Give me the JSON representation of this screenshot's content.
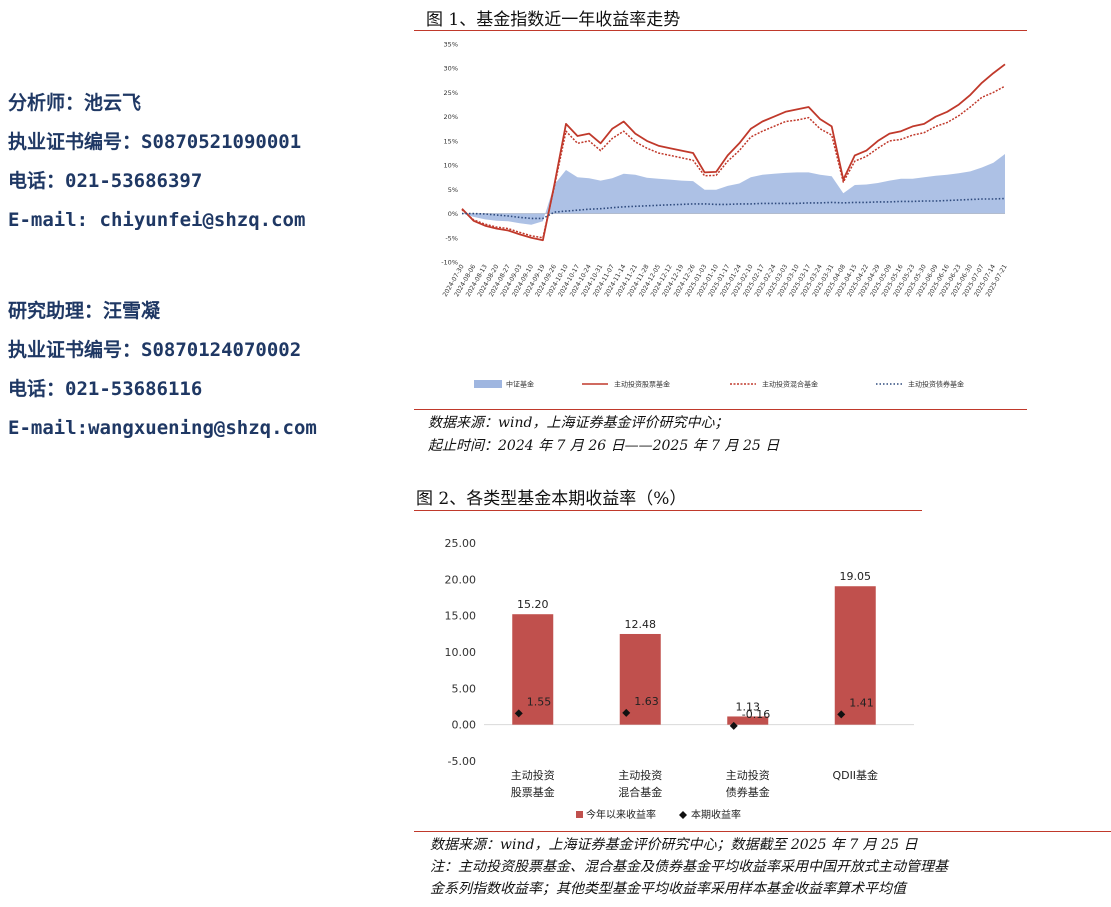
{
  "sidebar": {
    "analyst": "分析师：池云飞",
    "analyst_cert": "执业证书编号：S0870521090001",
    "analyst_phone": "电话：021-53686397",
    "analyst_email": "E-mail: chiyunfei@shzq.com",
    "assistant": "研究助理：汪雪凝",
    "assistant_cert": "执业证书编号：S0870124070002",
    "assistant_phone": "电话：021-53686116",
    "assistant_email": "E-mail:wangxuening@shzq.com"
  },
  "figure1": {
    "title": "图 1、基金指数近一年收益率走势",
    "source_line1": "数据来源：wind，上海证券基金评价研究中心；",
    "source_line2": "起止时间：2024 年 7 月 26 日——2025 年 7 月 25 日"
  },
  "figure2": {
    "title": "图 2、各类型基金本期收益率（%）",
    "source_line1": "数据来源：wind，上海证券基金评价研究中心；数据截至 2025 年 7 月 25 日",
    "source_line2": "注：主动投资股票基金、混合基金及债券基金平均收益率采用中国开放式主动管理基",
    "source_line3": "金系列指数收益率；其他类型基金平均收益率采用样本基金收益率算术平均值"
  },
  "colors": {
    "red": "#c0504d",
    "line_red": "#c0392b",
    "navy": "#2e4a7d",
    "area": "#9fb6e0",
    "text_blue": "#1f3864"
  },
  "chart_data": [
    {
      "type": "line",
      "ylim": [
        -10,
        35
      ],
      "yticks": [
        "-10%",
        "-5%",
        "0%",
        "5%",
        "10%",
        "15%",
        "20%",
        "25%",
        "30%",
        "35%"
      ],
      "x_labels": [
        "2024-07-30",
        "2024-08-06",
        "2024-08-13",
        "2024-08-20",
        "2024-08-27",
        "2024-09-03",
        "2024-09-10",
        "2024-09-19",
        "2024-09-26",
        "2024-10-10",
        "2024-10-17",
        "2024-10-24",
        "2024-10-31",
        "2024-11-07",
        "2024-11-14",
        "2024-11-21",
        "2024-11-28",
        "2024-12-05",
        "2024-12-12",
        "2024-12-19",
        "2024-12-26",
        "2025-01-03",
        "2025-01-10",
        "2025-01-17",
        "2025-01-24",
        "2025-02-10",
        "2025-02-17",
        "2025-02-24",
        "2025-03-03",
        "2025-03-10",
        "2025-03-17",
        "2025-03-24",
        "2025-03-31",
        "2025-04-08",
        "2025-04-15",
        "2025-04-22",
        "2025-04-29",
        "2025-05-09",
        "2025-05-16",
        "2025-05-23",
        "2025-05-30",
        "2025-06-09",
        "2025-06-16",
        "2025-06-23",
        "2025-06-30",
        "2025-07-07",
        "2025-07-14",
        "2025-07-21"
      ],
      "series": [
        {
          "name": "中证基金",
          "style": "area",
          "values": [
            0.1,
            -0.7,
            -1.2,
            -1.5,
            -1.6,
            -2.0,
            -2.3,
            -1.6,
            6.0,
            9.0,
            7.5,
            7.3,
            6.8,
            7.3,
            8.2,
            8.0,
            7.4,
            7.2,
            7.0,
            6.8,
            6.7,
            4.9,
            4.9,
            5.7,
            6.2,
            7.5,
            8.0,
            8.2,
            8.4,
            8.5,
            8.5,
            8.0,
            7.7,
            4.2,
            5.9,
            6.0,
            6.3,
            6.8,
            7.2,
            7.2,
            7.5,
            7.8,
            8.0,
            8.3,
            8.7,
            9.5,
            10.5,
            12.3
          ]
        },
        {
          "name": "主动投资股票基金",
          "style": "solid",
          "values": [
            1.0,
            -1.5,
            -2.5,
            -3.1,
            -3.5,
            -4.3,
            -5.0,
            -5.5,
            6.0,
            18.5,
            16.0,
            16.5,
            14.5,
            17.5,
            19.0,
            16.5,
            15.0,
            14.0,
            13.5,
            13.0,
            12.5,
            8.5,
            8.6,
            12.0,
            14.5,
            17.5,
            19.0,
            20.0,
            21.0,
            21.5,
            22.0,
            19.5,
            18.0,
            7.0,
            12.0,
            13.0,
            15.0,
            16.5,
            17.0,
            18.0,
            18.5,
            20.0,
            21.0,
            22.5,
            24.5,
            27.0,
            29.0,
            30.8
          ]
        },
        {
          "name": "主动投资混合基金",
          "style": "dashed",
          "values": [
            0.8,
            -1.3,
            -2.2,
            -2.8,
            -3.1,
            -3.9,
            -4.6,
            -5.0,
            5.6,
            17.0,
            14.5,
            15.0,
            13.0,
            15.5,
            17.0,
            14.8,
            13.5,
            12.5,
            12.0,
            11.5,
            11.0,
            7.8,
            7.9,
            10.8,
            13.0,
            15.8,
            17.0,
            18.0,
            19.0,
            19.3,
            19.8,
            17.5,
            16.2,
            6.5,
            10.8,
            11.8,
            13.5,
            15.0,
            15.3,
            16.2,
            16.7,
            18.0,
            18.8,
            20.2,
            22.0,
            24.0,
            25.0,
            26.3
          ]
        },
        {
          "name": "主动投资债券基金",
          "style": "dotted",
          "values": [
            0.0,
            0.0,
            -0.1,
            -0.3,
            -0.5,
            -0.8,
            -1.0,
            -1.0,
            0.3,
            0.5,
            0.7,
            0.9,
            1.0,
            1.2,
            1.4,
            1.5,
            1.6,
            1.7,
            1.8,
            1.9,
            2.0,
            2.0,
            1.9,
            1.9,
            2.0,
            2.0,
            2.1,
            2.1,
            2.1,
            2.1,
            2.2,
            2.2,
            2.3,
            2.2,
            2.3,
            2.3,
            2.4,
            2.4,
            2.5,
            2.5,
            2.6,
            2.6,
            2.7,
            2.8,
            2.9,
            3.0,
            3.0,
            3.1
          ]
        }
      ]
    },
    {
      "type": "bar",
      "categories": [
        "主动投资\n股票基金",
        "主动投资\n混合基金",
        "主动投资\n债券基金",
        "QDII基金"
      ],
      "ylim": [
        -5,
        25
      ],
      "yticks": [
        "-5.00",
        "0.00",
        "5.00",
        "10.00",
        "15.00",
        "20.00",
        "25.00"
      ],
      "series": [
        {
          "name": "今年以来收益率",
          "style": "bar",
          "values": [
            15.2,
            12.48,
            1.13,
            19.05
          ],
          "labels": [
            "15.20",
            "12.48",
            "1.13",
            "19.05"
          ]
        },
        {
          "name": "本期收益率",
          "style": "diamond",
          "values": [
            1.55,
            1.63,
            -0.16,
            1.41
          ],
          "labels": [
            "1.55",
            "1.63",
            "-0.16",
            "1.41"
          ]
        }
      ]
    }
  ]
}
